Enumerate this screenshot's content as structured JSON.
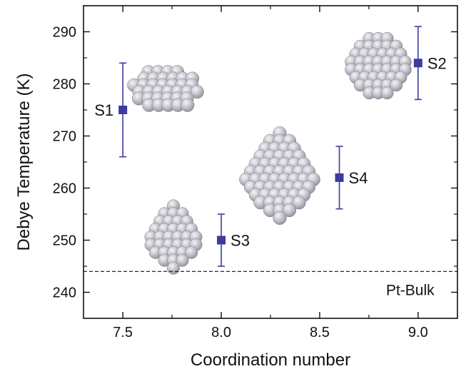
{
  "chart_data": {
    "type": "scatter",
    "xlabel": "Coordination number",
    "ylabel": "Debye Temperature (K)",
    "xlim": [
      7.3,
      9.2
    ],
    "ylim": [
      235,
      295
    ],
    "xticks": [
      "7.5",
      "8.0",
      "8.5",
      "9.0"
    ],
    "yticks": [
      "240",
      "250",
      "260",
      "270",
      "280",
      "290"
    ],
    "grid": false,
    "marker_color": "#3d3aa0",
    "points": [
      {
        "label": "S1",
        "x": 7.5,
        "y": 275,
        "err_low": 266,
        "err_high": 284
      },
      {
        "label": "S2",
        "x": 9.0,
        "y": 284,
        "err_low": 277,
        "err_high": 291
      },
      {
        "label": "S3",
        "x": 8.0,
        "y": 250,
        "err_low": 245,
        "err_high": 255
      },
      {
        "label": "S4",
        "x": 8.6,
        "y": 262,
        "err_low": 256,
        "err_high": 268
      }
    ],
    "reference_line": {
      "label": "Pt-Bulk",
      "y": 244,
      "style": "dashed"
    },
    "cluster_images": [
      {
        "near": "S1",
        "shape": "truncated-prism"
      },
      {
        "near": "S2",
        "shape": "cuboctahedron"
      },
      {
        "near": "S3",
        "shape": "small-octahedron"
      },
      {
        "near": "S4",
        "shape": "large-octahedron"
      }
    ]
  }
}
